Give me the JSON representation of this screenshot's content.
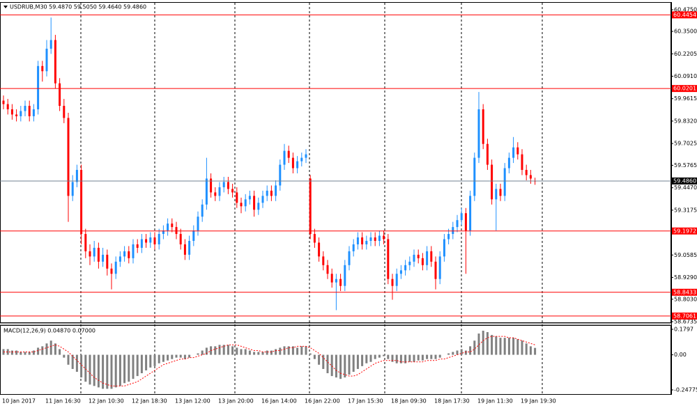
{
  "chart_data": [
    {
      "type": "candlestick",
      "title": "USDRUB,M30 59.4870 59.5050 59.4640 59.4860",
      "up_color": "#1e90ff",
      "down_color": "#ff0000",
      "categories": [
        "10 Jan 2017",
        null,
        null,
        null,
        null,
        null,
        null,
        null,
        null,
        null,
        "11 Jan 16:30",
        null,
        null,
        null,
        null,
        null,
        null,
        null,
        null,
        null,
        "12 Jan 10:30",
        null,
        null,
        null,
        null,
        null,
        null,
        null,
        null,
        null,
        "12 Jan 18:30",
        null,
        null,
        null,
        null,
        null,
        null,
        null,
        null,
        null,
        "13 Jan 12:00",
        null,
        null,
        null,
        null,
        null,
        null,
        null,
        null,
        null,
        "13 Jan 20:00",
        null,
        null,
        null,
        null,
        null,
        null,
        null,
        null,
        null,
        "16 Jan 14:00",
        null,
        null,
        null,
        null,
        null,
        null,
        null,
        null,
        null,
        "16 Jan 22:00",
        null,
        null,
        null,
        null,
        null,
        null,
        null,
        null,
        null,
        "17 Jan 15:30",
        null,
        null,
        null,
        null,
        null,
        null,
        null,
        null,
        null,
        "18 Jan 09:30",
        null,
        null,
        null,
        null,
        null,
        null,
        null,
        null,
        null,
        "18 Jan 17:30",
        null,
        null,
        null,
        null,
        null,
        null,
        null,
        null,
        null,
        "19 Jan 11:30",
        null,
        null,
        null,
        null,
        null,
        null,
        null,
        null,
        null,
        "19 Jan 19:30",
        null,
        null,
        null
      ],
      "ohlc": [
        [
          59.95,
          59.98,
          59.9,
          59.93
        ],
        [
          59.93,
          59.96,
          59.87,
          59.9
        ],
        [
          59.9,
          59.93,
          59.84,
          59.87
        ],
        [
          59.87,
          59.9,
          59.83,
          59.86
        ],
        [
          59.86,
          59.92,
          59.83,
          59.89
        ],
        [
          59.89,
          59.95,
          59.86,
          59.92
        ],
        [
          59.92,
          59.95,
          59.83,
          59.86
        ],
        [
          59.86,
          59.93,
          59.83,
          59.9
        ],
        [
          59.9,
          60.18,
          59.87,
          60.15
        ],
        [
          60.15,
          60.18,
          60.06,
          60.12
        ],
        [
          60.12,
          60.3,
          60.09,
          60.25
        ],
        [
          60.25,
          60.43,
          60.22,
          60.3
        ],
        [
          60.3,
          60.33,
          60.02,
          60.05
        ],
        [
          60.05,
          60.08,
          59.89,
          59.92
        ],
        [
          59.92,
          59.96,
          59.82,
          59.85
        ],
        [
          59.85,
          59.88,
          59.25,
          59.4
        ],
        [
          59.4,
          59.52,
          59.37,
          59.48
        ],
        [
          59.48,
          59.58,
          59.45,
          59.55
        ],
        [
          59.55,
          59.58,
          59.12,
          59.18
        ],
        [
          59.18,
          59.21,
          59.04,
          59.08
        ],
        [
          59.08,
          59.12,
          59.0,
          59.05
        ],
        [
          59.05,
          59.14,
          59.02,
          59.1
        ],
        [
          59.1,
          59.13,
          58.98,
          59.02
        ],
        [
          59.02,
          59.1,
          58.99,
          59.06
        ],
        [
          59.06,
          59.09,
          58.94,
          58.98
        ],
        [
          58.98,
          59.01,
          58.86,
          58.95
        ],
        [
          58.95,
          59.05,
          58.92,
          59.02
        ],
        [
          59.02,
          59.08,
          58.99,
          59.05
        ],
        [
          59.05,
          59.11,
          59.02,
          59.08
        ],
        [
          59.08,
          59.11,
          59.01,
          59.04
        ],
        [
          59.04,
          59.15,
          59.01,
          59.12
        ],
        [
          59.12,
          59.15,
          59.07,
          59.1
        ],
        [
          59.1,
          59.18,
          59.07,
          59.15
        ],
        [
          59.15,
          59.18,
          59.1,
          59.13
        ],
        [
          59.13,
          59.19,
          59.1,
          59.16
        ],
        [
          59.16,
          59.19,
          59.09,
          59.12
        ],
        [
          59.12,
          59.21,
          59.09,
          59.18
        ],
        [
          59.18,
          59.23,
          59.15,
          59.2
        ],
        [
          59.2,
          59.27,
          59.17,
          59.24
        ],
        [
          59.24,
          59.27,
          59.19,
          59.22
        ],
        [
          59.22,
          59.25,
          59.15,
          59.18
        ],
        [
          59.18,
          59.21,
          59.09,
          59.12
        ],
        [
          59.12,
          59.15,
          59.03,
          59.06
        ],
        [
          59.06,
          59.17,
          59.03,
          59.14
        ],
        [
          59.14,
          59.23,
          59.11,
          59.2
        ],
        [
          59.2,
          59.31,
          59.17,
          59.28
        ],
        [
          59.28,
          59.38,
          59.25,
          59.35
        ],
        [
          59.35,
          59.62,
          59.32,
          59.5
        ],
        [
          59.5,
          59.53,
          59.39,
          59.42
        ],
        [
          59.42,
          59.45,
          59.37,
          59.4
        ],
        [
          59.4,
          59.48,
          59.37,
          59.45
        ],
        [
          59.45,
          59.51,
          59.42,
          59.48
        ],
        [
          59.48,
          59.51,
          59.41,
          59.44
        ],
        [
          59.44,
          59.47,
          59.39,
          59.42
        ],
        [
          59.42,
          59.45,
          59.33,
          59.36
        ],
        [
          59.36,
          59.39,
          59.3,
          59.34
        ],
        [
          59.34,
          59.41,
          59.31,
          59.38
        ],
        [
          59.38,
          59.43,
          59.35,
          59.4
        ],
        [
          59.4,
          59.43,
          59.28,
          59.32
        ],
        [
          59.32,
          59.39,
          59.29,
          59.36
        ],
        [
          59.36,
          59.43,
          59.33,
          59.4
        ],
        [
          59.4,
          59.46,
          59.37,
          59.43
        ],
        [
          59.43,
          59.46,
          59.37,
          59.4
        ],
        [
          59.4,
          59.49,
          59.37,
          59.46
        ],
        [
          59.46,
          59.61,
          59.43,
          59.58
        ],
        [
          59.58,
          59.7,
          59.55,
          59.66
        ],
        [
          59.66,
          59.69,
          59.59,
          59.62
        ],
        [
          59.62,
          59.65,
          59.53,
          59.56
        ],
        [
          59.56,
          59.63,
          59.53,
          59.6
        ],
        [
          59.6,
          59.65,
          59.57,
          59.62
        ],
        [
          59.62,
          59.67,
          59.59,
          59.64
        ],
        [
          59.5,
          59.52,
          59.15,
          59.18
        ],
        [
          59.18,
          59.21,
          59.1,
          59.13
        ],
        [
          59.13,
          59.16,
          59.02,
          59.05
        ],
        [
          59.05,
          59.08,
          58.97,
          59.0
        ],
        [
          59.0,
          59.03,
          58.92,
          58.95
        ],
        [
          58.95,
          58.98,
          58.87,
          58.9
        ],
        [
          58.9,
          58.95,
          58.74,
          58.92
        ],
        [
          58.92,
          58.95,
          58.85,
          58.88
        ],
        [
          58.88,
          59.03,
          58.85,
          59.0
        ],
        [
          59.0,
          59.11,
          58.97,
          59.08
        ],
        [
          59.08,
          59.15,
          59.05,
          59.12
        ],
        [
          59.12,
          59.19,
          59.09,
          59.16
        ],
        [
          59.16,
          59.19,
          59.09,
          59.12
        ],
        [
          59.12,
          59.17,
          59.09,
          59.14
        ],
        [
          59.14,
          59.19,
          59.11,
          59.16
        ],
        [
          59.16,
          59.19,
          59.11,
          59.14
        ],
        [
          59.14,
          59.2,
          59.11,
          59.17
        ],
        [
          59.17,
          59.2,
          59.12,
          59.15
        ],
        [
          59.15,
          59.18,
          58.89,
          58.92
        ],
        [
          58.92,
          58.95,
          58.8,
          58.88
        ],
        [
          58.88,
          58.98,
          58.85,
          58.95
        ],
        [
          58.95,
          59.0,
          58.92,
          58.97
        ],
        [
          58.97,
          59.03,
          58.94,
          59.0
        ],
        [
          59.0,
          59.05,
          58.97,
          59.02
        ],
        [
          59.02,
          59.09,
          58.99,
          59.06
        ],
        [
          59.06,
          59.09,
          59.01,
          59.04
        ],
        [
          59.04,
          59.07,
          58.97,
          59.0
        ],
        [
          59.0,
          59.11,
          58.97,
          59.08
        ],
        [
          59.08,
          59.11,
          58.99,
          59.02
        ],
        [
          59.02,
          59.05,
          58.86,
          58.92
        ],
        [
          58.92,
          59.08,
          58.89,
          59.05
        ],
        [
          59.05,
          59.18,
          59.02,
          59.15
        ],
        [
          59.15,
          59.21,
          59.12,
          59.18
        ],
        [
          59.18,
          59.25,
          59.15,
          59.22
        ],
        [
          59.22,
          59.29,
          59.19,
          59.26
        ],
        [
          59.26,
          59.33,
          59.23,
          59.3
        ],
        [
          59.3,
          59.33,
          58.95,
          59.2
        ],
        [
          59.2,
          59.43,
          59.17,
          59.4
        ],
        [
          59.4,
          59.65,
          59.37,
          59.62
        ],
        [
          59.62,
          60.0,
          59.59,
          59.9
        ],
        [
          59.9,
          59.93,
          59.67,
          59.7
        ],
        [
          59.7,
          59.73,
          59.55,
          59.58
        ],
        [
          59.58,
          59.61,
          59.35,
          59.38
        ],
        [
          59.38,
          59.47,
          59.2,
          59.44
        ],
        [
          59.44,
          59.47,
          59.37,
          59.4
        ],
        [
          59.4,
          59.59,
          59.37,
          59.56
        ],
        [
          59.56,
          59.65,
          59.53,
          59.62
        ],
        [
          59.62,
          59.74,
          59.59,
          59.68
        ],
        [
          59.68,
          59.71,
          59.61,
          59.64
        ],
        [
          59.64,
          59.67,
          59.52,
          59.55
        ],
        [
          59.55,
          59.58,
          59.49,
          59.52
        ],
        [
          59.52,
          59.55,
          59.47,
          59.5
        ],
        [
          59.487,
          59.505,
          59.464,
          59.486
        ]
      ],
      "ylim": [
        58.6735,
        60.475
      ],
      "yticks": [
        {
          "value": 60.475,
          "label": "60.4750"
        },
        {
          "value": 60.35,
          "label": "60.3500"
        },
        {
          "value": 60.2205,
          "label": "60.2205"
        },
        {
          "value": 60.091,
          "label": "60.0910"
        },
        {
          "value": 59.9615,
          "label": "59.9615"
        },
        {
          "value": 59.832,
          "label": "59.8320"
        },
        {
          "value": 59.7025,
          "label": "59.7025"
        },
        {
          "value": 59.5765,
          "label": "59.5765"
        },
        {
          "value": 59.447,
          "label": "59.4470"
        },
        {
          "value": 59.3175,
          "label": "59.3175"
        },
        {
          "value": 59.0585,
          "label": "59.0585"
        },
        {
          "value": 58.929,
          "label": "58.9290"
        },
        {
          "value": 58.803,
          "label": "58.8030"
        },
        {
          "value": 58.6735,
          "label": "58.6735"
        }
      ],
      "levels": [
        {
          "value": 60.4454,
          "label": "60.4454"
        },
        {
          "value": 60.0201,
          "label": "60.0201"
        },
        {
          "value": 59.1972,
          "label": "59.1972"
        },
        {
          "value": 58.8433,
          "label": "58.8433"
        },
        {
          "value": 58.7061,
          "label": "58.7061"
        }
      ],
      "level_color": "#ff0000",
      "last_price": {
        "value": 59.486,
        "label": "59.4860"
      }
    },
    {
      "type": "macd",
      "title": "MACD(12,26,9) 0.04870 0.07000",
      "ylim": [
        -0.24775,
        0.1797
      ],
      "yticks": [
        0.1797,
        {
          "value": 0,
          "label": "0.00"
        },
        -0.24775
      ],
      "series": [
        {
          "name": "MACD",
          "kind": "histogram",
          "color": "#808080",
          "values": [
            0.04,
            0.04,
            0.03,
            0.03,
            0.02,
            0.02,
            0.02,
            0.03,
            0.05,
            0.06,
            0.08,
            0.1,
            0.08,
            0.04,
            -0.02,
            -0.07,
            -0.1,
            -0.12,
            -0.16,
            -0.19,
            -0.21,
            -0.22,
            -0.23,
            -0.24,
            -0.24,
            -0.24,
            -0.23,
            -0.22,
            -0.2,
            -0.19,
            -0.17,
            -0.15,
            -0.13,
            -0.11,
            -0.09,
            -0.08,
            -0.06,
            -0.05,
            -0.04,
            -0.03,
            -0.02,
            -0.02,
            -0.03,
            -0.02,
            0.0,
            0.01,
            0.03,
            0.05,
            0.06,
            0.06,
            0.07,
            0.07,
            0.07,
            0.06,
            0.05,
            0.04,
            0.04,
            0.03,
            0.02,
            0.02,
            0.02,
            0.03,
            0.03,
            0.04,
            0.05,
            0.06,
            0.06,
            0.06,
            0.05,
            0.06,
            0.06,
            0.01,
            -0.03,
            -0.07,
            -0.1,
            -0.13,
            -0.15,
            -0.16,
            -0.17,
            -0.16,
            -0.14,
            -0.12,
            -0.1,
            -0.08,
            -0.06,
            -0.05,
            -0.03,
            -0.02,
            -0.01,
            -0.03,
            -0.05,
            -0.06,
            -0.06,
            -0.06,
            -0.05,
            -0.05,
            -0.04,
            -0.04,
            -0.03,
            -0.03,
            -0.03,
            -0.02,
            0.0,
            0.01,
            0.02,
            0.03,
            0.04,
            0.03,
            0.06,
            0.1,
            0.15,
            0.17,
            0.16,
            0.14,
            0.13,
            0.12,
            0.12,
            0.12,
            0.12,
            0.11,
            0.1,
            0.08,
            0.06,
            0.0487
          ]
        },
        {
          "name": "Signal",
          "kind": "line",
          "color": "#ff0000",
          "values": [
            0.02,
            0.02,
            0.02,
            0.02,
            0.02,
            0.02,
            0.02,
            0.02,
            0.03,
            0.04,
            0.05,
            0.06,
            0.07,
            0.06,
            0.04,
            0.02,
            -0.01,
            -0.04,
            -0.07,
            -0.1,
            -0.13,
            -0.16,
            -0.18,
            -0.2,
            -0.21,
            -0.22,
            -0.22,
            -0.22,
            -0.22,
            -0.21,
            -0.2,
            -0.19,
            -0.17,
            -0.15,
            -0.13,
            -0.11,
            -0.09,
            -0.07,
            -0.06,
            -0.05,
            -0.04,
            -0.03,
            -0.03,
            -0.02,
            -0.02,
            -0.01,
            0.0,
            0.01,
            0.03,
            0.04,
            0.05,
            0.06,
            0.07,
            0.07,
            0.07,
            0.06,
            0.05,
            0.04,
            0.03,
            0.03,
            0.02,
            0.02,
            0.02,
            0.03,
            0.03,
            0.04,
            0.05,
            0.05,
            0.06,
            0.06,
            0.06,
            0.05,
            0.03,
            0.01,
            -0.02,
            -0.05,
            -0.08,
            -0.11,
            -0.13,
            -0.14,
            -0.15,
            -0.15,
            -0.14,
            -0.12,
            -0.1,
            -0.08,
            -0.06,
            -0.05,
            -0.04,
            -0.04,
            -0.04,
            -0.04,
            -0.05,
            -0.05,
            -0.05,
            -0.05,
            -0.05,
            -0.05,
            -0.04,
            -0.04,
            -0.04,
            -0.03,
            -0.03,
            -0.02,
            -0.01,
            0.0,
            0.01,
            0.02,
            0.02,
            0.04,
            0.07,
            0.1,
            0.12,
            0.13,
            0.13,
            0.13,
            0.13,
            0.12,
            0.12,
            0.11,
            0.1,
            0.09,
            0.08,
            0.07
          ]
        }
      ]
    }
  ]
}
